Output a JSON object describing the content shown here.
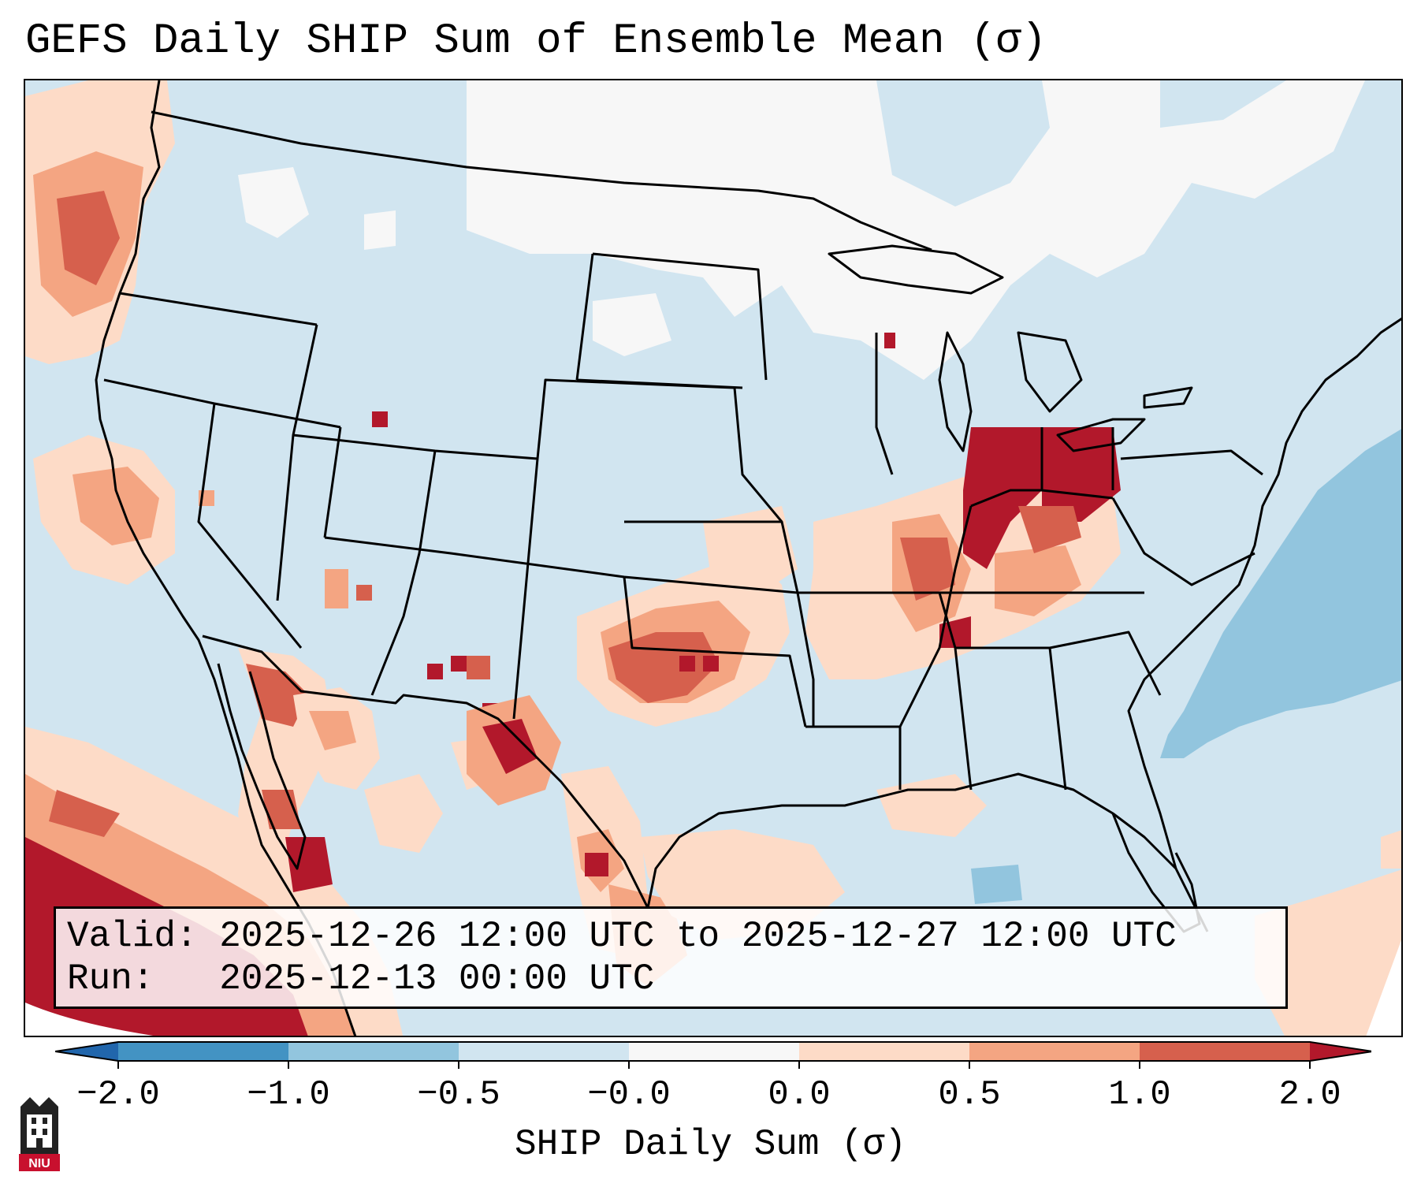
{
  "title": "GEFS Daily SHIP Sum of Ensemble Mean (σ)",
  "info": {
    "valid_label": "Valid:",
    "valid_value": "2025-12-26 12:00 UTC to 2025-12-27 12:00 UTC",
    "run_label": "Run:",
    "run_value": "2025-12-13 00:00 UTC"
  },
  "colorbar": {
    "label": "SHIP Daily Sum (σ)",
    "ticks": [
      "−2.0",
      "−1.0",
      "−0.5",
      "−0.0",
      "0.0",
      "0.5",
      "1.0",
      "2.0"
    ],
    "bins": [
      {
        "range": "-2.0 to -1.0",
        "color": "#4393c3"
      },
      {
        "range": "-1.0 to -0.5",
        "color": "#92c5de"
      },
      {
        "range": "-0.5 to -0.0",
        "color": "#d1e5f0"
      },
      {
        "range": "-0.0 to 0.0",
        "color": "#f7f7f7"
      },
      {
        "range": "0.0 to 0.5",
        "color": "#fddbc7"
      },
      {
        "range": "0.5 to 1.0",
        "color": "#f4a582"
      },
      {
        "range": "1.0 to 2.0",
        "color": "#d6604d"
      }
    ],
    "extend_low_color": "#2166ac",
    "extend_high_color": "#b2182b"
  },
  "map": {
    "projection": "Lambert conformal, CONUS",
    "background_color": "#d1e5f0",
    "highlights": [
      {
        "region": "Ohio Valley / Indiana-Ohio",
        "level": "above 2.0"
      },
      {
        "region": "Oklahoma / Red River",
        "level": "1.0 to 2.0"
      },
      {
        "region": "Pacific Northwest offshore",
        "level": "1.0 to 2.0"
      },
      {
        "region": "Eastern Pacific off Mexico",
        "level": "above 2.0"
      },
      {
        "region": "Western Atlantic offshore",
        "level": "-1.0 to -0.5"
      }
    ]
  },
  "logo": {
    "text": "NIU"
  }
}
